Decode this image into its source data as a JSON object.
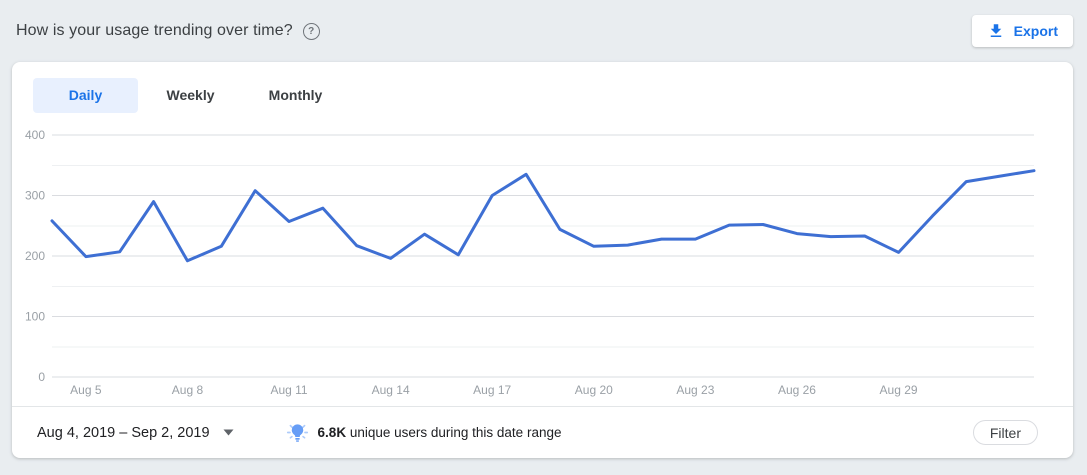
{
  "header": {
    "title": "How is your usage trending over time?",
    "export_label": "Export"
  },
  "icons": {
    "help": "?"
  },
  "tabs": [
    {
      "label": "Daily",
      "active": true
    },
    {
      "label": "Weekly",
      "active": false
    },
    {
      "label": "Monthly",
      "active": false
    }
  ],
  "chart_data": {
    "type": "line",
    "x": [
      "Aug 4",
      "Aug 5",
      "Aug 6",
      "Aug 7",
      "Aug 8",
      "Aug 9",
      "Aug 10",
      "Aug 11",
      "Aug 12",
      "Aug 13",
      "Aug 14",
      "Aug 15",
      "Aug 16",
      "Aug 17",
      "Aug 18",
      "Aug 19",
      "Aug 20",
      "Aug 21",
      "Aug 22",
      "Aug 23",
      "Aug 24",
      "Aug 25",
      "Aug 26",
      "Aug 27",
      "Aug 28",
      "Aug 29",
      "Aug 30",
      "Aug 31",
      "Sep 1",
      "Sep 2"
    ],
    "values": [
      258,
      199,
      207,
      290,
      192,
      216,
      308,
      257,
      279,
      217,
      196,
      236,
      202,
      300,
      335,
      244,
      216,
      218,
      228,
      228,
      251,
      252,
      237,
      232,
      233,
      206,
      266,
      323,
      332,
      341
    ],
    "ylim": [
      0,
      400
    ],
    "yticks": [
      0,
      100,
      200,
      300,
      400
    ],
    "minor_grid_step": 50,
    "xtick_labels": [
      "Aug 5",
      "Aug 8",
      "Aug 11",
      "Aug 14",
      "Aug 17",
      "Aug 20",
      "Aug 23",
      "Aug 26",
      "Aug 29"
    ],
    "xtick_indices": [
      1,
      4,
      7,
      10,
      13,
      16,
      19,
      22,
      25
    ],
    "grid": "horizontal",
    "legend": "none",
    "title": "",
    "xlabel": "",
    "ylabel": "",
    "line_color": "#3e6fd3",
    "major_grid_color": "#dadce0",
    "minor_grid_color": "#eef0f2",
    "axis_label_color": "#9aa0a6"
  },
  "footer": {
    "date_range": "Aug 4, 2019 – Sep 2, 2019",
    "insight_value": "6.8K",
    "insight_text": " unique users during this date range",
    "filter_label": "Filter"
  }
}
